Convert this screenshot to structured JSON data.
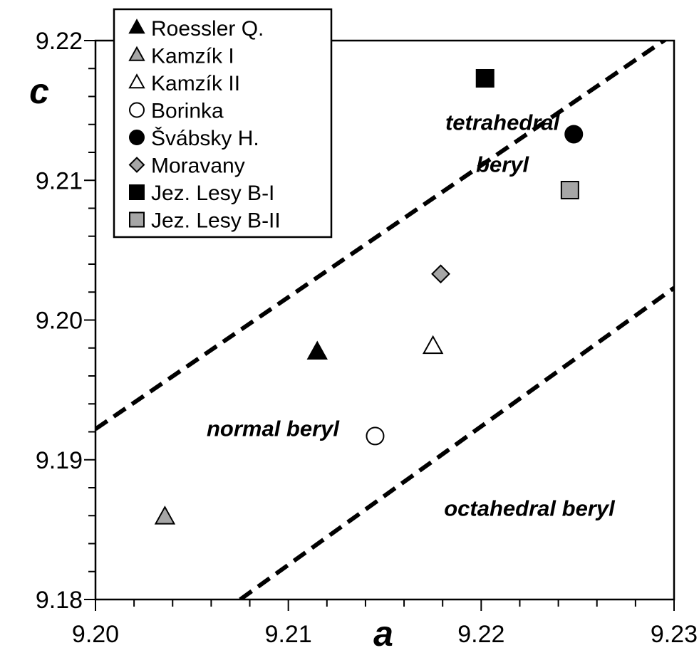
{
  "chart_data": {
    "type": "scatter",
    "xlabel": "a",
    "ylabel": "c",
    "xlim": [
      9.2,
      9.23
    ],
    "ylim": [
      9.18,
      9.22
    ],
    "x_ticks": [
      "9.20",
      "9.21",
      "9.22",
      "9.23"
    ],
    "y_ticks": [
      "9.18",
      "9.19",
      "9.20",
      "9.21",
      "9.22"
    ],
    "grid": false,
    "legend_position": "top-left",
    "series": [
      {
        "name": "Roessler Q.",
        "marker": "triangle",
        "color": "#000000",
        "x": 9.2115,
        "y": 9.1977
      },
      {
        "name": "Kamzík I",
        "marker": "triangle",
        "color": "#a6a6a6",
        "x": 9.2036,
        "y": 9.1859
      },
      {
        "name": "Kamzík II",
        "marker": "triangle",
        "color": "#ffffff",
        "x": 9.2175,
        "y": 9.1981
      },
      {
        "name": "Borinka",
        "marker": "circle",
        "color": "#ffffff",
        "x": 9.2145,
        "y": 9.1917
      },
      {
        "name": "Švábsky H.",
        "marker": "circle",
        "color": "#000000",
        "x": 9.2248,
        "y": 9.2133
      },
      {
        "name": "Moravany",
        "marker": "diamond",
        "color": "#a6a6a6",
        "x": 9.2179,
        "y": 9.2033
      },
      {
        "name": "Jez. Lesy B-I",
        "marker": "square",
        "color": "#000000",
        "x": 9.2202,
        "y": 9.2173
      },
      {
        "name": "Jez. Lesy B-II",
        "marker": "square",
        "color": "#a6a6a6",
        "x": 9.2246,
        "y": 9.2093
      }
    ],
    "boundary_lines": [
      {
        "style": "dashed",
        "x": [
          9.2,
          9.23
        ],
        "y": [
          9.1922,
          9.2205
        ]
      },
      {
        "style": "dashed",
        "x": [
          9.2075,
          9.23
        ],
        "y": [
          9.18,
          9.2023
        ]
      }
    ],
    "annotations": [
      {
        "text_line1": "tetrahedral",
        "text_line2": "beryl",
        "x": 9.2211,
        "y": 9.2136
      },
      {
        "text": "normal beryl",
        "x": 9.2092,
        "y": 9.1917
      },
      {
        "text": "octahedral beryl",
        "x": 9.2225,
        "y": 9.186
      }
    ]
  }
}
